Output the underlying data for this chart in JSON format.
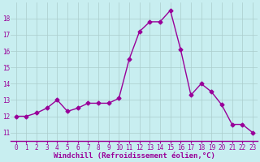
{
  "x": [
    0,
    1,
    2,
    3,
    4,
    5,
    6,
    7,
    8,
    9,
    10,
    11,
    12,
    13,
    14,
    15,
    16,
    17,
    18,
    19,
    20,
    21,
    22,
    23
  ],
  "y": [
    12.0,
    12.0,
    12.2,
    12.5,
    13.0,
    12.3,
    12.5,
    12.8,
    12.8,
    12.8,
    13.1,
    15.5,
    17.2,
    17.8,
    17.8,
    18.5,
    16.1,
    13.3,
    14.0,
    13.5,
    12.7,
    11.5,
    11.5,
    11.0
  ],
  "line_color": "#990099",
  "marker": "D",
  "marker_size": 2.5,
  "line_width": 1.0,
  "bg_color": "#c8eef0",
  "grid_color": "#aacccc",
  "axis_color": "#990099",
  "tick_color": "#990099",
  "xlabel": "Windchill (Refroidissement éolien,°C)",
  "xlabel_color": "#990099",
  "xlabel_fontsize": 6.5,
  "tick_fontsize": 5.5,
  "ylim": [
    10.5,
    19.0
  ],
  "xlim": [
    -0.5,
    23.5
  ],
  "yticks": [
    11,
    12,
    13,
    14,
    15,
    16,
    17,
    18
  ],
  "xticks": [
    0,
    1,
    2,
    3,
    4,
    5,
    6,
    7,
    8,
    9,
    10,
    11,
    12,
    13,
    14,
    15,
    16,
    17,
    18,
    19,
    20,
    21,
    22,
    23
  ]
}
